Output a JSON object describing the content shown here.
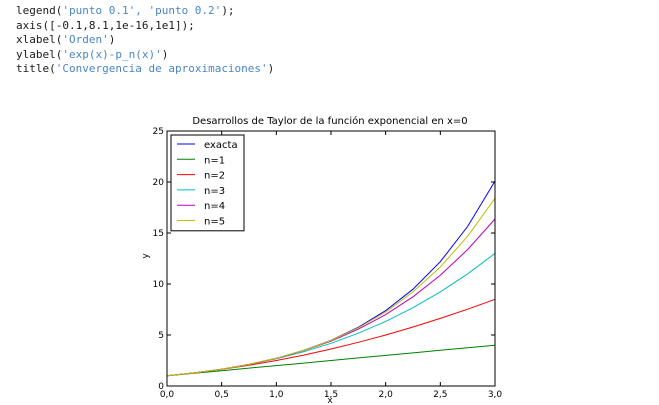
{
  "code_lines": [
    [
      "legend(",
      "'punto 0.1', 'punto 0.2'",
      ");"
    ],
    [
      "axis([-0.1,8.1,1e-16,1e1]);",
      "",
      ""
    ],
    [
      "xlabel(",
      "'Orden'",
      ")"
    ],
    [
      "ylabel(",
      "'exp(x)-p_n(x)'",
      ")"
    ],
    [
      "title(",
      "'Convergencia de aproximaciones'",
      ")"
    ]
  ],
  "chart_data": {
    "type": "line",
    "title": "Desarrollos de Taylor de la función exponencial en x=0",
    "xlabel": "x",
    "ylabel": "y",
    "xlim": [
      0,
      3
    ],
    "ylim": [
      0,
      25
    ],
    "x_ticks": [
      "0,0",
      "0,5",
      "1,0",
      "1,5",
      "2,0",
      "2,5",
      "3,0"
    ],
    "y_ticks": [
      "0",
      "5",
      "10",
      "15",
      "20",
      "25"
    ],
    "x_tick_values": [
      0,
      0.5,
      1,
      1.5,
      2,
      2.5,
      3
    ],
    "y_tick_values": [
      0,
      5,
      10,
      15,
      20,
      25
    ],
    "legend_position": "top-left",
    "grid": false,
    "x": [
      0,
      0.25,
      0.5,
      0.75,
      1,
      1.25,
      1.5,
      1.75,
      2,
      2.25,
      2.5,
      2.75,
      3
    ],
    "series": [
      {
        "name": "exacta",
        "color": "#0000ff",
        "values": [
          1,
          1.284,
          1.649,
          2.117,
          2.718,
          3.49,
          4.482,
          5.755,
          7.389,
          9.488,
          12.182,
          15.643,
          20.086
        ]
      },
      {
        "name": "n=1",
        "color": "#008000",
        "values": [
          1,
          1.25,
          1.5,
          1.75,
          2,
          2.25,
          2.5,
          2.75,
          3,
          3.25,
          3.5,
          3.75,
          4
        ]
      },
      {
        "name": "n=2",
        "color": "#ff0000",
        "values": [
          1,
          1.281,
          1.625,
          2.031,
          2.5,
          3.031,
          3.625,
          4.281,
          5,
          5.781,
          6.625,
          7.531,
          8.5
        ]
      },
      {
        "name": "n=3",
        "color": "#00bfbf",
        "values": [
          1,
          1.284,
          1.646,
          2.102,
          2.667,
          3.357,
          4.188,
          5.174,
          6.333,
          7.68,
          9.229,
          10.997,
          13
        ]
      },
      {
        "name": "n=4",
        "color": "#bf00bf",
        "values": [
          1,
          1.284,
          1.648,
          2.115,
          2.708,
          3.458,
          4.398,
          5.565,
          7,
          8.748,
          10.857,
          13.38,
          16.375
        ]
      },
      {
        "name": "n=5",
        "color": "#bfbf00",
        "values": [
          1,
          1.284,
          1.649,
          2.117,
          2.717,
          3.484,
          4.461,
          5.698,
          7.267,
          9.23,
          11.671,
          14.688,
          18.4
        ]
      }
    ]
  }
}
